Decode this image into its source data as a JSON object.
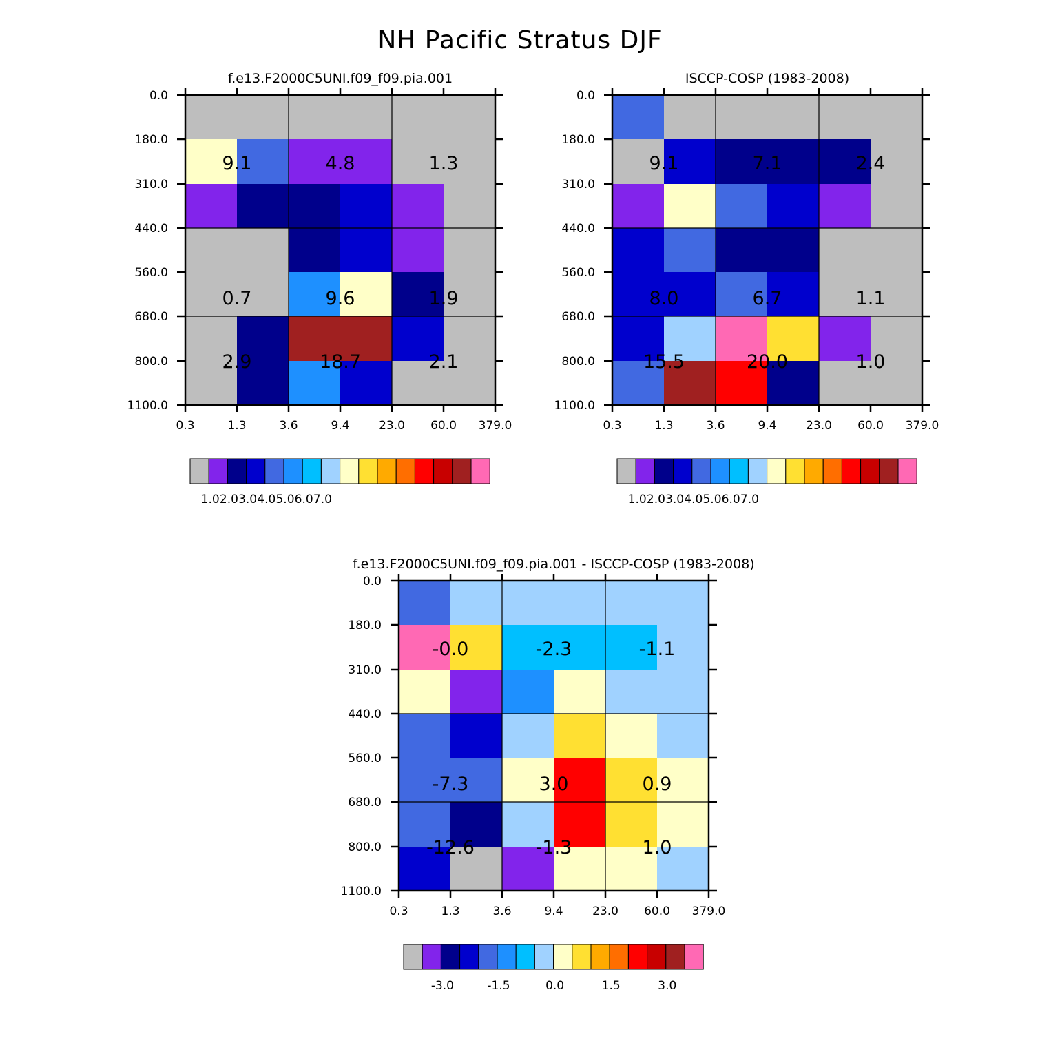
{
  "figure": {
    "title": "NH Pacific Stratus DJF"
  },
  "colors": {
    "palette": [
      "#bebebe",
      "#8224eb",
      "#00008b",
      "#0000cd",
      "#4169e1",
      "#1e90ff",
      "#00bfff",
      "#a0d2ff",
      "#ffffc8",
      "#ffe032",
      "#ffaa00",
      "#ff6e00",
      "#ff0000",
      "#c80000",
      "#a02020",
      "#ff69b4"
    ],
    "frame": "#000000",
    "background": "#ffffff"
  },
  "chart_data": [
    {
      "type": "heatmap",
      "title": "f.e13.F2000C5UNI.f09_f09.pia.001",
      "x_tick_labels": [
        "0.3",
        "1.3",
        "3.6",
        "9.4",
        "23.0",
        "60.0",
        "379.0"
      ],
      "y_tick_labels": [
        "0.0",
        "180.0",
        "310.0",
        "440.0",
        "560.0",
        "680.0",
        "800.0",
        "1100.0"
      ],
      "cell_color_index": [
        [
          0,
          0,
          0,
          0,
          0,
          0
        ],
        [
          8,
          4,
          1,
          1,
          0,
          0
        ],
        [
          1,
          2,
          2,
          3,
          1,
          0
        ],
        [
          0,
          0,
          2,
          3,
          1,
          0
        ],
        [
          0,
          0,
          5,
          8,
          2,
          0
        ],
        [
          0,
          2,
          14,
          14,
          3,
          0
        ],
        [
          0,
          2,
          5,
          3,
          0,
          0
        ]
      ],
      "block_values": [
        [
          "9.1",
          "4.8",
          "1.3"
        ],
        [
          "0.7",
          "9.6",
          "1.9"
        ],
        [
          "2.9",
          "18.7",
          "2.1"
        ]
      ],
      "colorbar_labels": [
        "1.0",
        "2.0",
        "3.0",
        "4.0",
        "5.0",
        "6.0",
        "7.0"
      ]
    },
    {
      "type": "heatmap",
      "title": "ISCCP-COSP (1983-2008)",
      "x_tick_labels": [
        "0.3",
        "1.3",
        "3.6",
        "9.4",
        "23.0",
        "60.0",
        "379.0"
      ],
      "y_tick_labels": [
        "0.0",
        "180.0",
        "310.0",
        "440.0",
        "560.0",
        "680.0",
        "800.0",
        "1100.0"
      ],
      "cell_color_index": [
        [
          4,
          0,
          0,
          0,
          0,
          0
        ],
        [
          0,
          3,
          2,
          2,
          2,
          0
        ],
        [
          1,
          8,
          4,
          3,
          1,
          0
        ],
        [
          3,
          4,
          2,
          2,
          0,
          0
        ],
        [
          3,
          3,
          4,
          3,
          0,
          0
        ],
        [
          3,
          7,
          15,
          9,
          1,
          0
        ],
        [
          4,
          14,
          12,
          2,
          0,
          0
        ]
      ],
      "block_values": [
        [
          "9.1",
          "7.1",
          "2.4"
        ],
        [
          "8.0",
          "6.7",
          "1.1"
        ],
        [
          "15.5",
          "20.0",
          "1.0"
        ]
      ],
      "colorbar_labels": [
        "1.0",
        "2.0",
        "3.0",
        "4.0",
        "5.0",
        "6.0",
        "7.0"
      ]
    },
    {
      "type": "heatmap",
      "title": "f.e13.F2000C5UNI.f09_f09.pia.001 - ISCCP-COSP (1983-2008)",
      "x_tick_labels": [
        "0.3",
        "1.3",
        "3.6",
        "9.4",
        "23.0",
        "60.0",
        "379.0"
      ],
      "y_tick_labels": [
        "0.0",
        "180.0",
        "310.0",
        "440.0",
        "560.0",
        "680.0",
        "800.0",
        "1100.0"
      ],
      "cell_color_index": [
        [
          4,
          7,
          7,
          7,
          7,
          7
        ],
        [
          15,
          9,
          6,
          6,
          6,
          7
        ],
        [
          8,
          1,
          5,
          8,
          7,
          7
        ],
        [
          4,
          3,
          7,
          9,
          8,
          7
        ],
        [
          4,
          4,
          8,
          12,
          9,
          8
        ],
        [
          4,
          2,
          7,
          12,
          9,
          8
        ],
        [
          3,
          0,
          1,
          8,
          8,
          7
        ]
      ],
      "block_values": [
        [
          "-0.0",
          "-2.3",
          "-1.1"
        ],
        [
          "-7.3",
          "3.0",
          "0.9"
        ],
        [
          "-12.6",
          "-1.3",
          "1.0"
        ]
      ],
      "colorbar_labels": [
        "-3.0",
        "-1.5",
        "0.0",
        "1.5",
        "3.0"
      ]
    }
  ]
}
